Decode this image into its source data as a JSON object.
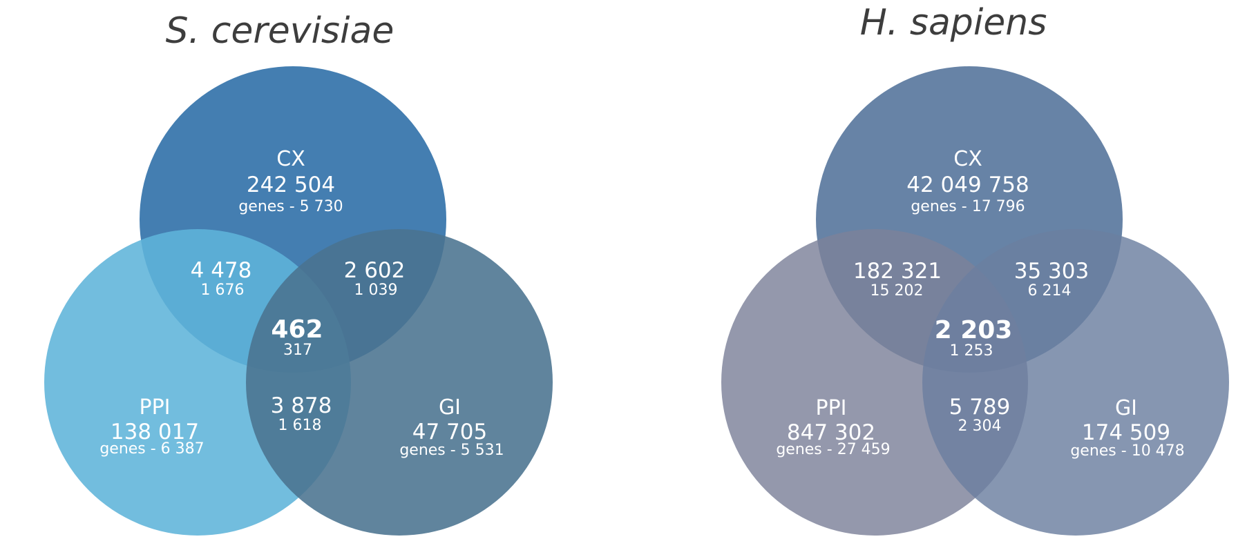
{
  "diagrams": [
    {
      "title": "S. cerevisiae",
      "colors": {
        "cx": "#2a6ca6",
        "ppi": "#5fb4d9",
        "gi": "#4a7390"
      },
      "cx": {
        "name": "CX",
        "count": "242 504",
        "genes": "genes - 5 730"
      },
      "ppi": {
        "name": "PPI",
        "count": "138 017",
        "genes": "genes - 6 387"
      },
      "gi": {
        "name": "GI",
        "count": "47 705",
        "genes": "genes - 5 531"
      },
      "cx_ppi": {
        "count": "4 478",
        "genes": "1 676"
      },
      "cx_gi": {
        "count": "2 602",
        "genes": "1 039"
      },
      "ppi_gi": {
        "count": "3 878",
        "genes": "1 618"
      },
      "all": {
        "count": "462",
        "genes": "317"
      }
    },
    {
      "title": "H. sapiens",
      "colors": {
        "cx": "#52729a",
        "ppi": "#7d819a",
        "gi": "#6b7fa0"
      },
      "cx": {
        "name": "CX",
        "count": "42 049 758",
        "genes": "genes - 17 796"
      },
      "ppi": {
        "name": "PPI",
        "count": "847 302",
        "genes": "genes - 27 459"
      },
      "gi": {
        "name": "GI",
        "count": "174 509",
        "genes": "genes - 10 478"
      },
      "cx_ppi": {
        "count": "182 321",
        "genes": "15 202"
      },
      "cx_gi": {
        "count": "35 303",
        "genes": "6 214"
      },
      "ppi_gi": {
        "count": "5 789",
        "genes": "2 304"
      },
      "all": {
        "count": "2 203",
        "genes": "1 253"
      }
    }
  ]
}
